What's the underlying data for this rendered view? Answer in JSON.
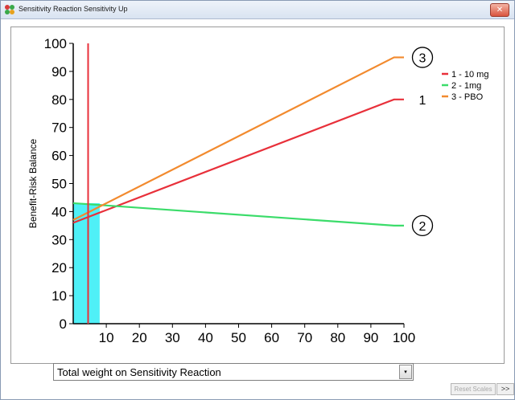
{
  "window": {
    "title": "Sensitivity Reaction Sensitivity Up",
    "close_label": "✕",
    "icon": "app-flowers-icon"
  },
  "controls": {
    "dropdown_value": "Total weight on Sensitivity Reaction",
    "dropdown_arrow": "▾",
    "reset_label": "Reset Scales",
    "more_label": ">>"
  },
  "colors": {
    "series_1": "#e8303a",
    "series_2": "#3bdc6a",
    "series_3": "#f28a2e",
    "highlight": "#4ff0f7"
  },
  "chart_data": {
    "type": "line",
    "ylabel": "Benefit-Risk Balance",
    "xlim": [
      0,
      100
    ],
    "ylim": [
      0,
      100
    ],
    "xticks": [
      10,
      20,
      30,
      40,
      50,
      60,
      70,
      80,
      90,
      100
    ],
    "yticks": [
      0,
      10,
      20,
      30,
      40,
      50,
      60,
      70,
      80,
      90,
      100
    ],
    "grid": false,
    "legend_position": "top-right",
    "current_weight": 4.5,
    "highlight_region": {
      "x": [
        0,
        8
      ],
      "y": [
        0,
        43
      ]
    },
    "series": [
      {
        "name": "1 - 10 mg",
        "end_label": "1",
        "circled": false,
        "x": [
          0,
          97,
          100
        ],
        "y": [
          36,
          80,
          80
        ]
      },
      {
        "name": "2 - 1mg",
        "end_label": "2",
        "circled": true,
        "x": [
          0,
          97,
          100
        ],
        "y": [
          43,
          35,
          35
        ]
      },
      {
        "name": "3 - PBO",
        "end_label": "3",
        "circled": true,
        "x": [
          0,
          97,
          100
        ],
        "y": [
          37,
          95,
          95
        ]
      }
    ]
  }
}
